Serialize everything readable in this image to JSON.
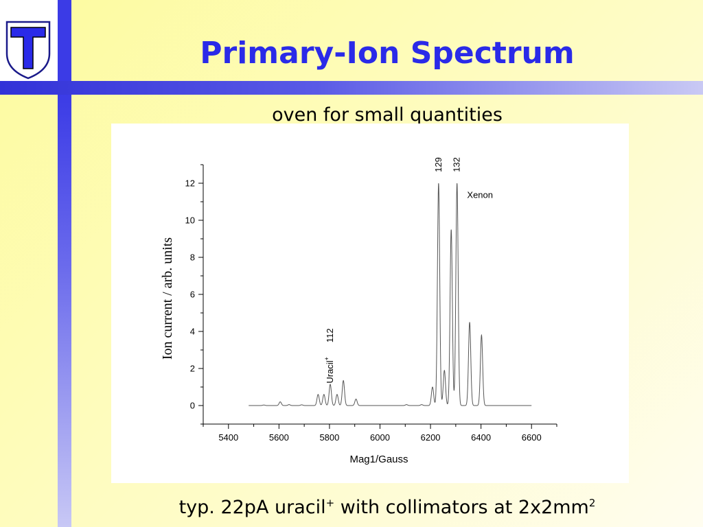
{
  "slide": {
    "title": "Primary-Ion Spectrum",
    "subtitle": "oven for small quantities",
    "caption_prefix": "typ. 22pA uracil",
    "caption_sup": "+",
    "caption_mid": " with collimators at 2x2mm",
    "caption_sup2": "2",
    "logo_icon": "shield-t-logo-icon",
    "colors": {
      "title": "#2a2ae8",
      "bar": "#3b3be6",
      "background": "#fdfb9e"
    }
  },
  "chart_data": {
    "type": "line",
    "title": "",
    "xlabel": "Mag1/Gauss",
    "ylabel": "Ion current / arb. units",
    "xlim": [
      5300,
      6700
    ],
    "ylim": [
      -1,
      13
    ],
    "x_ticks": [
      5400,
      5600,
      5800,
      6000,
      6200,
      6400,
      6600
    ],
    "y_ticks": [
      0,
      2,
      4,
      6,
      8,
      10,
      12
    ],
    "grid": false,
    "line_color": "#555555",
    "x_range": [
      5480,
      6600
    ],
    "peaks": [
      {
        "x": 5540,
        "y": 0.03
      },
      {
        "x": 5605,
        "y": 0.2
      },
      {
        "x": 5640,
        "y": 0.05
      },
      {
        "x": 5690,
        "y": 0.04
      },
      {
        "x": 5755,
        "y": 0.6
      },
      {
        "x": 5778,
        "y": 0.6
      },
      {
        "x": 5803,
        "y": 1.15
      },
      {
        "x": 5830,
        "y": 0.6
      },
      {
        "x": 5855,
        "y": 1.35
      },
      {
        "x": 5905,
        "y": 0.35
      },
      {
        "x": 6105,
        "y": 0.05
      },
      {
        "x": 6165,
        "y": 0.05
      },
      {
        "x": 6208,
        "y": 1.0
      },
      {
        "x": 6232,
        "y": 12.0
      },
      {
        "x": 6255,
        "y": 1.9
      },
      {
        "x": 6282,
        "y": 9.5
      },
      {
        "x": 6305,
        "y": 12.0
      },
      {
        "x": 6355,
        "y": 4.5
      },
      {
        "x": 6402,
        "y": 3.8
      }
    ],
    "annotations": [
      {
        "text": "129",
        "x": 6232,
        "y": 12.6,
        "rotate": true
      },
      {
        "text": "132",
        "x": 6305,
        "y": 12.6,
        "rotate": true
      },
      {
        "text": "Xenon",
        "x": 6345,
        "y": 11.2,
        "rotate": false
      },
      {
        "text": "Uracil",
        "sup": "+",
        "x": 5803,
        "y": 1.2,
        "rotate": true
      },
      {
        "text": "112",
        "x": 5803,
        "y": 3.4,
        "rotate": true
      }
    ]
  }
}
